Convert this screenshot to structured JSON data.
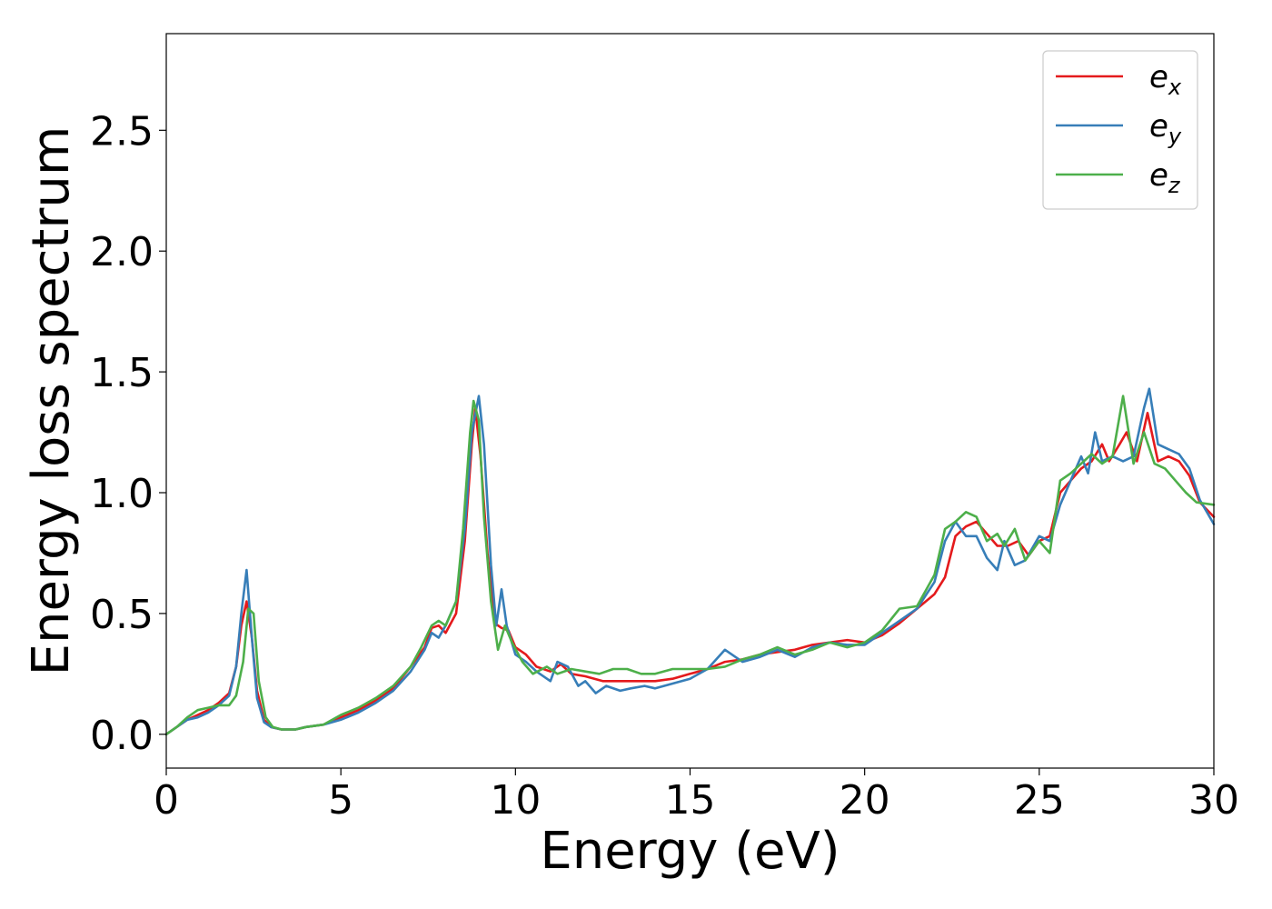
{
  "chart_data": {
    "type": "line",
    "xlabel": "Energy (eV)",
    "ylabel": "Energy loss spectrum",
    "xlim": [
      0,
      30
    ],
    "ylim": [
      -0.14,
      2.9
    ],
    "xticks": [
      0,
      5,
      10,
      15,
      20,
      25,
      30
    ],
    "xtick_labels": [
      "0",
      "5",
      "10",
      "15",
      "20",
      "25",
      "30"
    ],
    "yticks": [
      0.0,
      0.5,
      1.0,
      1.5,
      2.0,
      2.5
    ],
    "ytick_labels": [
      "0.0",
      "0.5",
      "1.0",
      "1.5",
      "2.0",
      "2.5"
    ],
    "grid": false,
    "legend_position": "top-right",
    "series": [
      {
        "name": "e",
        "name_sub": "x",
        "color": "#e41a1c",
        "x": [
          0,
          0.3,
          0.6,
          0.9,
          1.2,
          1.5,
          1.8,
          2.0,
          2.15,
          2.3,
          2.45,
          2.6,
          2.8,
          3.0,
          3.3,
          3.7,
          4.0,
          4.5,
          5.0,
          5.5,
          6.0,
          6.5,
          7.0,
          7.4,
          7.6,
          7.8,
          8.0,
          8.3,
          8.55,
          8.75,
          8.85,
          9.0,
          9.2,
          9.4,
          9.6,
          9.8,
          10.0,
          10.3,
          10.6,
          11.0,
          11.3,
          11.6,
          12.0,
          12.5,
          13.0,
          13.5,
          14.0,
          14.5,
          15.0,
          15.5,
          16.0,
          16.5,
          17.0,
          17.5,
          18.0,
          18.5,
          19.0,
          19.5,
          20.0,
          20.5,
          21.0,
          21.5,
          22.0,
          22.3,
          22.6,
          22.9,
          23.2,
          23.5,
          23.8,
          24.1,
          24.4,
          24.7,
          25.0,
          25.3,
          25.6,
          25.9,
          26.2,
          26.5,
          26.8,
          27.0,
          27.3,
          27.5,
          27.8,
          28.1,
          28.4,
          28.7,
          29.0,
          29.3,
          29.6,
          30.0
        ],
        "y": [
          0.0,
          0.03,
          0.06,
          0.08,
          0.1,
          0.13,
          0.17,
          0.28,
          0.45,
          0.55,
          0.4,
          0.18,
          0.06,
          0.03,
          0.02,
          0.02,
          0.03,
          0.04,
          0.07,
          0.1,
          0.14,
          0.19,
          0.28,
          0.36,
          0.44,
          0.45,
          0.42,
          0.5,
          0.8,
          1.2,
          1.35,
          1.15,
          0.75,
          0.46,
          0.44,
          0.43,
          0.36,
          0.33,
          0.28,
          0.26,
          0.29,
          0.25,
          0.24,
          0.22,
          0.22,
          0.22,
          0.22,
          0.23,
          0.25,
          0.27,
          0.3,
          0.31,
          0.33,
          0.34,
          0.35,
          0.37,
          0.38,
          0.39,
          0.38,
          0.41,
          0.46,
          0.52,
          0.58,
          0.65,
          0.82,
          0.86,
          0.88,
          0.83,
          0.78,
          0.78,
          0.8,
          0.74,
          0.8,
          0.82,
          1.0,
          1.05,
          1.1,
          1.13,
          1.2,
          1.13,
          1.2,
          1.25,
          1.13,
          1.33,
          1.13,
          1.15,
          1.13,
          1.07,
          0.96,
          0.9
        ]
      },
      {
        "name": "e",
        "name_sub": "y",
        "color": "#377eb8",
        "x": [
          0,
          0.3,
          0.6,
          0.9,
          1.2,
          1.5,
          1.8,
          2.0,
          2.15,
          2.3,
          2.45,
          2.6,
          2.8,
          3.0,
          3.3,
          3.7,
          4.0,
          4.5,
          5.0,
          5.5,
          6.0,
          6.5,
          7.0,
          7.4,
          7.6,
          7.8,
          8.0,
          8.3,
          8.55,
          8.75,
          8.95,
          9.1,
          9.3,
          9.45,
          9.6,
          9.75,
          10.0,
          10.3,
          10.6,
          11.0,
          11.2,
          11.5,
          11.8,
          12.0,
          12.3,
          12.6,
          13.0,
          13.3,
          13.7,
          14.0,
          14.5,
          15.0,
          15.5,
          16.0,
          16.5,
          17.0,
          17.5,
          18.0,
          18.5,
          19.0,
          19.5,
          20.0,
          20.5,
          21.0,
          21.5,
          22.0,
          22.3,
          22.6,
          22.9,
          23.2,
          23.5,
          23.8,
          24.0,
          24.3,
          24.6,
          25.0,
          25.3,
          25.6,
          25.9,
          26.2,
          26.4,
          26.6,
          26.8,
          27.1,
          27.4,
          27.7,
          28.0,
          28.15,
          28.4,
          28.7,
          29.0,
          29.3,
          29.6,
          30.0
        ],
        "y": [
          0.0,
          0.03,
          0.06,
          0.07,
          0.09,
          0.12,
          0.16,
          0.28,
          0.5,
          0.68,
          0.4,
          0.15,
          0.05,
          0.03,
          0.02,
          0.02,
          0.03,
          0.04,
          0.06,
          0.09,
          0.13,
          0.18,
          0.26,
          0.35,
          0.42,
          0.4,
          0.45,
          0.55,
          0.85,
          1.25,
          1.4,
          1.2,
          0.7,
          0.45,
          0.6,
          0.45,
          0.33,
          0.3,
          0.26,
          0.22,
          0.3,
          0.28,
          0.2,
          0.22,
          0.17,
          0.2,
          0.18,
          0.19,
          0.2,
          0.19,
          0.21,
          0.23,
          0.27,
          0.35,
          0.3,
          0.32,
          0.35,
          0.32,
          0.36,
          0.38,
          0.37,
          0.37,
          0.42,
          0.47,
          0.52,
          0.63,
          0.8,
          0.88,
          0.82,
          0.82,
          0.73,
          0.68,
          0.8,
          0.7,
          0.72,
          0.82,
          0.8,
          0.95,
          1.05,
          1.15,
          1.08,
          1.25,
          1.13,
          1.15,
          1.13,
          1.15,
          1.35,
          1.43,
          1.2,
          1.18,
          1.16,
          1.1,
          0.97,
          0.87
        ]
      },
      {
        "name": "e",
        "name_sub": "z",
        "color": "#4daf4a",
        "x": [
          0,
          0.3,
          0.6,
          0.9,
          1.2,
          1.5,
          1.8,
          2.0,
          2.2,
          2.35,
          2.5,
          2.65,
          2.85,
          3.05,
          3.3,
          3.7,
          4.0,
          4.5,
          5.0,
          5.5,
          6.0,
          6.5,
          7.0,
          7.3,
          7.6,
          7.8,
          8.0,
          8.3,
          8.5,
          8.7,
          8.8,
          8.95,
          9.1,
          9.3,
          9.5,
          9.7,
          9.9,
          10.2,
          10.5,
          10.9,
          11.2,
          11.6,
          12.0,
          12.4,
          12.8,
          13.2,
          13.6,
          14.0,
          14.5,
          15.0,
          15.5,
          16.0,
          16.5,
          17.0,
          17.5,
          18.0,
          18.5,
          19.0,
          19.5,
          20.0,
          20.5,
          21.0,
          21.5,
          22.0,
          22.3,
          22.6,
          22.9,
          23.2,
          23.5,
          23.8,
          24.0,
          24.3,
          24.6,
          25.0,
          25.3,
          25.6,
          25.9,
          26.2,
          26.5,
          26.8,
          27.1,
          27.4,
          27.7,
          28.0,
          28.3,
          28.6,
          28.9,
          29.2,
          29.5,
          30.0
        ],
        "y": [
          0.0,
          0.03,
          0.07,
          0.1,
          0.11,
          0.12,
          0.12,
          0.16,
          0.3,
          0.52,
          0.5,
          0.22,
          0.07,
          0.03,
          0.02,
          0.02,
          0.03,
          0.04,
          0.08,
          0.11,
          0.15,
          0.2,
          0.28,
          0.36,
          0.45,
          0.47,
          0.45,
          0.55,
          0.85,
          1.25,
          1.38,
          1.3,
          0.9,
          0.55,
          0.35,
          0.45,
          0.38,
          0.3,
          0.25,
          0.28,
          0.25,
          0.27,
          0.26,
          0.25,
          0.27,
          0.27,
          0.25,
          0.25,
          0.27,
          0.27,
          0.27,
          0.28,
          0.31,
          0.33,
          0.36,
          0.33,
          0.35,
          0.38,
          0.36,
          0.38,
          0.43,
          0.52,
          0.53,
          0.66,
          0.85,
          0.88,
          0.92,
          0.9,
          0.8,
          0.83,
          0.78,
          0.85,
          0.72,
          0.8,
          0.75,
          1.05,
          1.08,
          1.12,
          1.16,
          1.12,
          1.15,
          1.4,
          1.12,
          1.25,
          1.12,
          1.1,
          1.05,
          1.0,
          0.96,
          0.95
        ]
      }
    ]
  }
}
